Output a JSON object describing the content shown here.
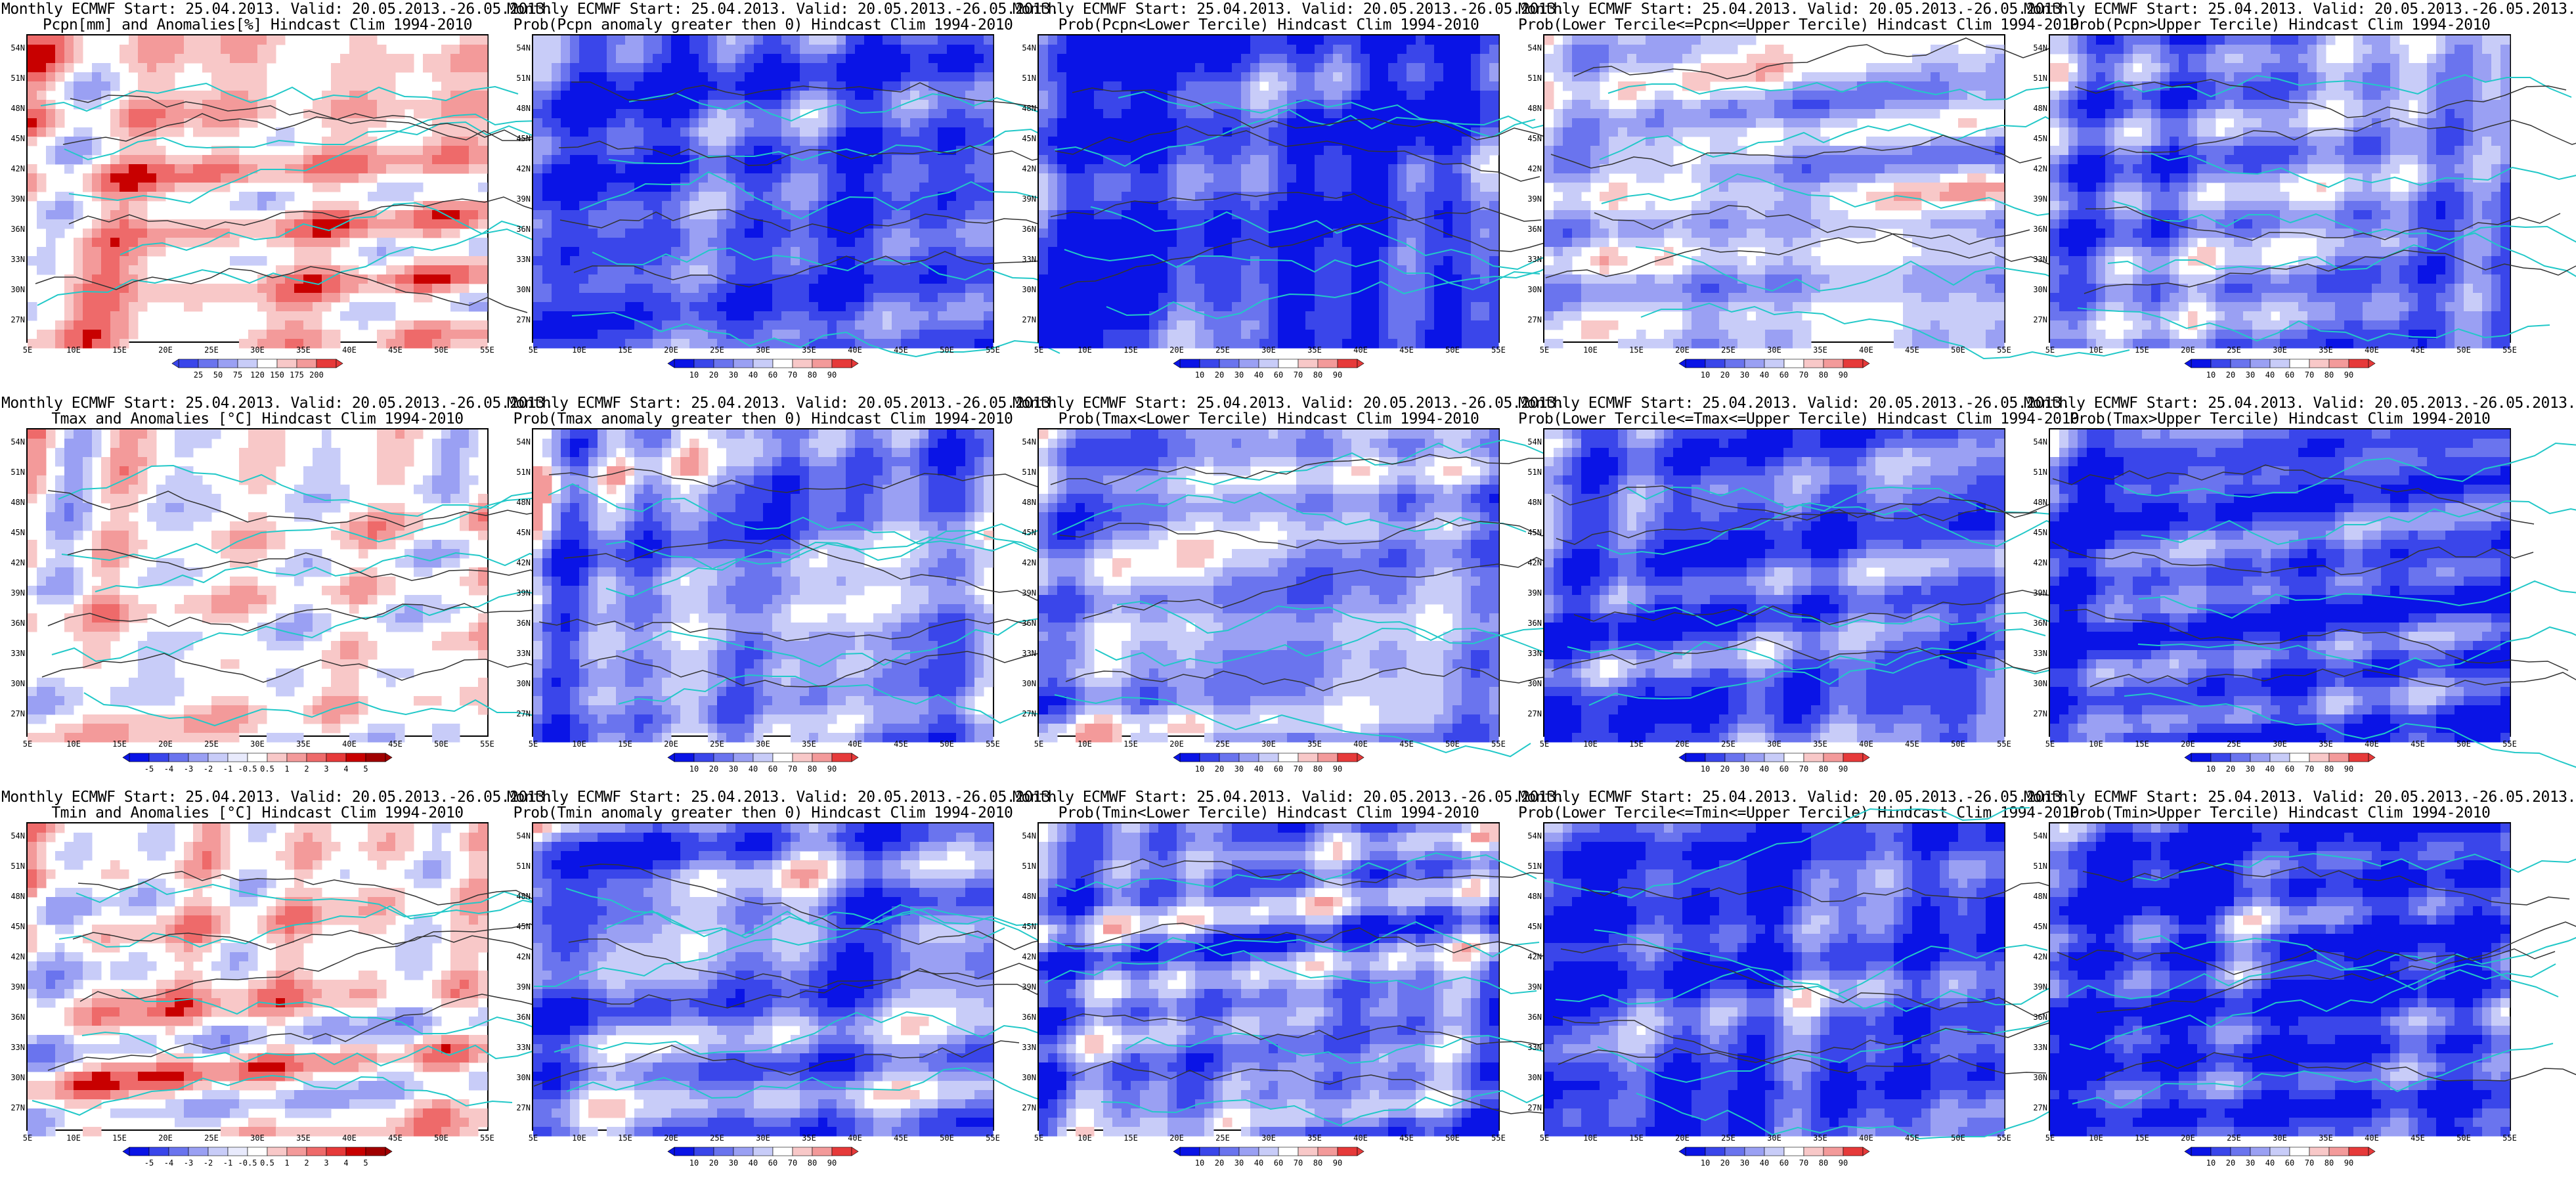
{
  "lat_labels": [
    "54N",
    "51N",
    "48N",
    "45N",
    "42N",
    "39N",
    "36N",
    "33N",
    "30N",
    "27N"
  ],
  "lon_labels": [
    "5E",
    "10E",
    "15E",
    "20E",
    "25E",
    "30E",
    "35E",
    "40E",
    "45E",
    "50E",
    "55E"
  ],
  "colors": {
    "blues": [
      "#0a14e6",
      "#3a46ea",
      "#6a74ee",
      "#9aa0f3",
      "#c8ccf8",
      "#ffffff"
    ],
    "reds": [
      "#ffffff",
      "#f8c8c8",
      "#f39a9a",
      "#ee6a6a",
      "#e63a3a",
      "#c80000"
    ],
    "coast": "#22c8c8",
    "contour": "#333333"
  },
  "panels": [
    {
      "title1": "Monthly ECMWF Start: 25.04.2013. Valid: 20.05.2013.-26.05.2013.",
      "title2": "Pcpn[mm] and Anomalies[%] Hindcast Clim 1994-2010",
      "palette": "anom",
      "cbar": [
        "25",
        "50",
        "75",
        "120",
        "150",
        "175",
        "200"
      ]
    },
    {
      "title1": "Monthly ECMWF Start: 25.04.2013. Valid: 20.05.2013.-26.05.2013.",
      "title2": "Prob(Pcpn anomaly greater then 0) Hindcast Clim 1994-2010",
      "palette": "prob",
      "cbar": [
        "10",
        "20",
        "30",
        "40",
        "60",
        "70",
        "80",
        "90"
      ]
    },
    {
      "title1": "Monthly ECMWF Start: 25.04.2013. Valid: 20.05.2013.-26.05.2013.",
      "title2": "Prob(Pcpn<Lower Tercile) Hindcast Clim 1994-2010",
      "palette": "prob",
      "cbar": [
        "10",
        "20",
        "30",
        "40",
        "60",
        "70",
        "80",
        "90"
      ]
    },
    {
      "title1": "Monthly ECMWF Start: 25.04.2013. Valid: 20.05.2013.-26.05.2013.",
      "title2": "Prob(Lower Tercile<=Pcpn<=Upper Tercile) Hindcast Clim 1994-2010",
      "palette": "prob",
      "cbar": [
        "10",
        "20",
        "30",
        "40",
        "60",
        "70",
        "80",
        "90"
      ]
    },
    {
      "title1": "Monthly ECMWF Start: 25.04.2013. Valid: 20.05.2013.-26.05.2013.",
      "title2": "Prob(Pcpn>Upper Tercile) Hindcast Clim 1994-2010",
      "palette": "prob",
      "cbar": [
        "10",
        "20",
        "30",
        "40",
        "60",
        "70",
        "80",
        "90"
      ]
    },
    {
      "title1": "Monthly ECMWF Start: 25.04.2013. Valid: 20.05.2013.-26.05.2013.",
      "title2": "Tmax and Anomalies [°C] Hindcast Clim 1994-2010",
      "palette": "temp",
      "cbar": [
        "-5",
        "-4",
        "-3",
        "-2",
        "-1",
        "-0.5",
        "0.5",
        "1",
        "2",
        "3",
        "4",
        "5"
      ]
    },
    {
      "title1": "Monthly ECMWF Start: 25.04.2013. Valid: 20.05.2013.-26.05.2013.",
      "title2": "Prob(Tmax anomaly greater then 0) Hindcast Clim 1994-2010",
      "palette": "prob",
      "cbar": [
        "10",
        "20",
        "30",
        "40",
        "60",
        "70",
        "80",
        "90"
      ]
    },
    {
      "title1": "Monthly ECMWF Start: 25.04.2013. Valid: 20.05.2013.-26.05.2013.",
      "title2": "Prob(Tmax<Lower Tercile) Hindcast Clim 1994-2010",
      "palette": "prob",
      "cbar": [
        "10",
        "20",
        "30",
        "40",
        "60",
        "70",
        "80",
        "90"
      ]
    },
    {
      "title1": "Monthly ECMWF Start: 25.04.2013. Valid: 20.05.2013.-26.05.2013.",
      "title2": "Prob(Lower Tercile<=Tmax<=Upper Tercile) Hindcast Clim 1994-2010",
      "palette": "prob",
      "cbar": [
        "10",
        "20",
        "30",
        "40",
        "60",
        "70",
        "80",
        "90"
      ]
    },
    {
      "title1": "Monthly ECMWF Start: 25.04.2013. Valid: 20.05.2013.-26.05.2013.",
      "title2": "Prob(Tmax>Upper Tercile) Hindcast Clim 1994-2010",
      "palette": "prob",
      "cbar": [
        "10",
        "20",
        "30",
        "40",
        "60",
        "70",
        "80",
        "90"
      ]
    },
    {
      "title1": "Monthly ECMWF Start: 25.04.2013. Valid: 20.05.2013.-26.05.2013.",
      "title2": "Tmin and Anomalies [°C] Hindcast Clim 1994-2010",
      "palette": "temp",
      "cbar": [
        "-5",
        "-4",
        "-3",
        "-2",
        "-1",
        "-0.5",
        "0.5",
        "1",
        "2",
        "3",
        "4",
        "5"
      ]
    },
    {
      "title1": "Monthly ECMWF Start: 25.04.2013. Valid: 20.05.2013.-26.05.2013.",
      "title2": "Prob(Tmin anomaly greater then 0) Hindcast Clim 1994-2010",
      "palette": "prob",
      "cbar": [
        "10",
        "20",
        "30",
        "40",
        "60",
        "70",
        "80",
        "90"
      ]
    },
    {
      "title1": "Monthly ECMWF Start: 25.04.2013. Valid: 20.05.2013.-26.05.2013.",
      "title2": "Prob(Tmin<Lower Tercile) Hindcast Clim 1994-2010",
      "palette": "prob",
      "cbar": [
        "10",
        "20",
        "30",
        "40",
        "60",
        "70",
        "80",
        "90"
      ]
    },
    {
      "title1": "Monthly ECMWF Start: 25.04.2013. Valid: 20.05.2013.-26.05.2013.",
      "title2": "Prob(Lower Tercile<=Tmin<=Upper Tercile) Hindcast Clim 1994-2010",
      "palette": "prob",
      "cbar": [
        "10",
        "20",
        "30",
        "40",
        "60",
        "70",
        "80",
        "90"
      ]
    },
    {
      "title1": "Monthly ECMWF Start: 25.04.2013. Valid: 20.05.2013.-26.05.2013.",
      "title2": "Prob(Tmin>Upper Tercile) Hindcast Clim 1994-2010",
      "palette": "prob",
      "cbar": [
        "10",
        "20",
        "30",
        "40",
        "60",
        "70",
        "80",
        "90"
      ]
    }
  ]
}
